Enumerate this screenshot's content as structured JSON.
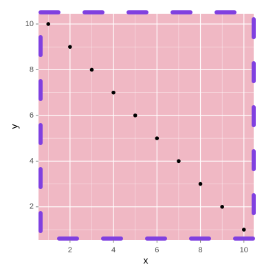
{
  "chart_data": {
    "type": "scatter",
    "x_label": "x",
    "y_label": "y",
    "x": [
      1,
      2,
      3,
      4,
      5,
      6,
      7,
      8,
      9,
      10
    ],
    "values": [
      10,
      9,
      8,
      7,
      6,
      5,
      4,
      3,
      2,
      1
    ],
    "color": "#000000",
    "panel_color": "#f0b8c4",
    "border_color": "#8040e0",
    "xlim": [
      0.55,
      10.45
    ],
    "ylim": [
      0.55,
      10.45
    ],
    "xticks": [
      2,
      4,
      6,
      8,
      10
    ],
    "yticks": [
      2,
      4,
      6,
      8,
      10
    ],
    "minor_xticks": [
      1,
      3,
      5,
      7,
      9
    ],
    "minor_yticks": [
      1,
      3,
      5,
      7,
      9
    ],
    "grid": true
  }
}
